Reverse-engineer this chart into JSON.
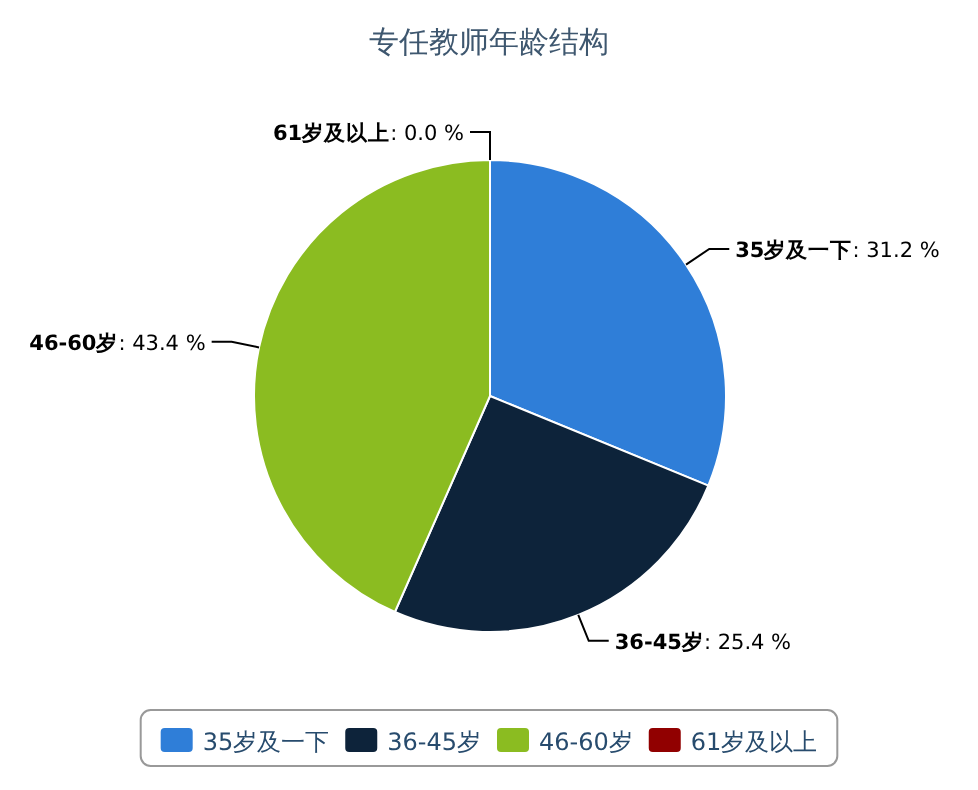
{
  "chart_data": {
    "type": "pie",
    "title": "专任教师年龄结构",
    "categories": [
      "35岁及一下",
      "36-45岁",
      "46-60岁",
      "61岁及以上"
    ],
    "values": [
      31.2,
      25.4,
      43.4,
      0.0
    ],
    "colors": [
      "#2f7ed8",
      "#0d233a",
      "#8bbc21",
      "#910000"
    ],
    "value_labels": [
      ": 31.2 %",
      ": 25.4 %",
      ": 43.4 %",
      ": 0.0 %"
    ],
    "legend": "bottom"
  }
}
